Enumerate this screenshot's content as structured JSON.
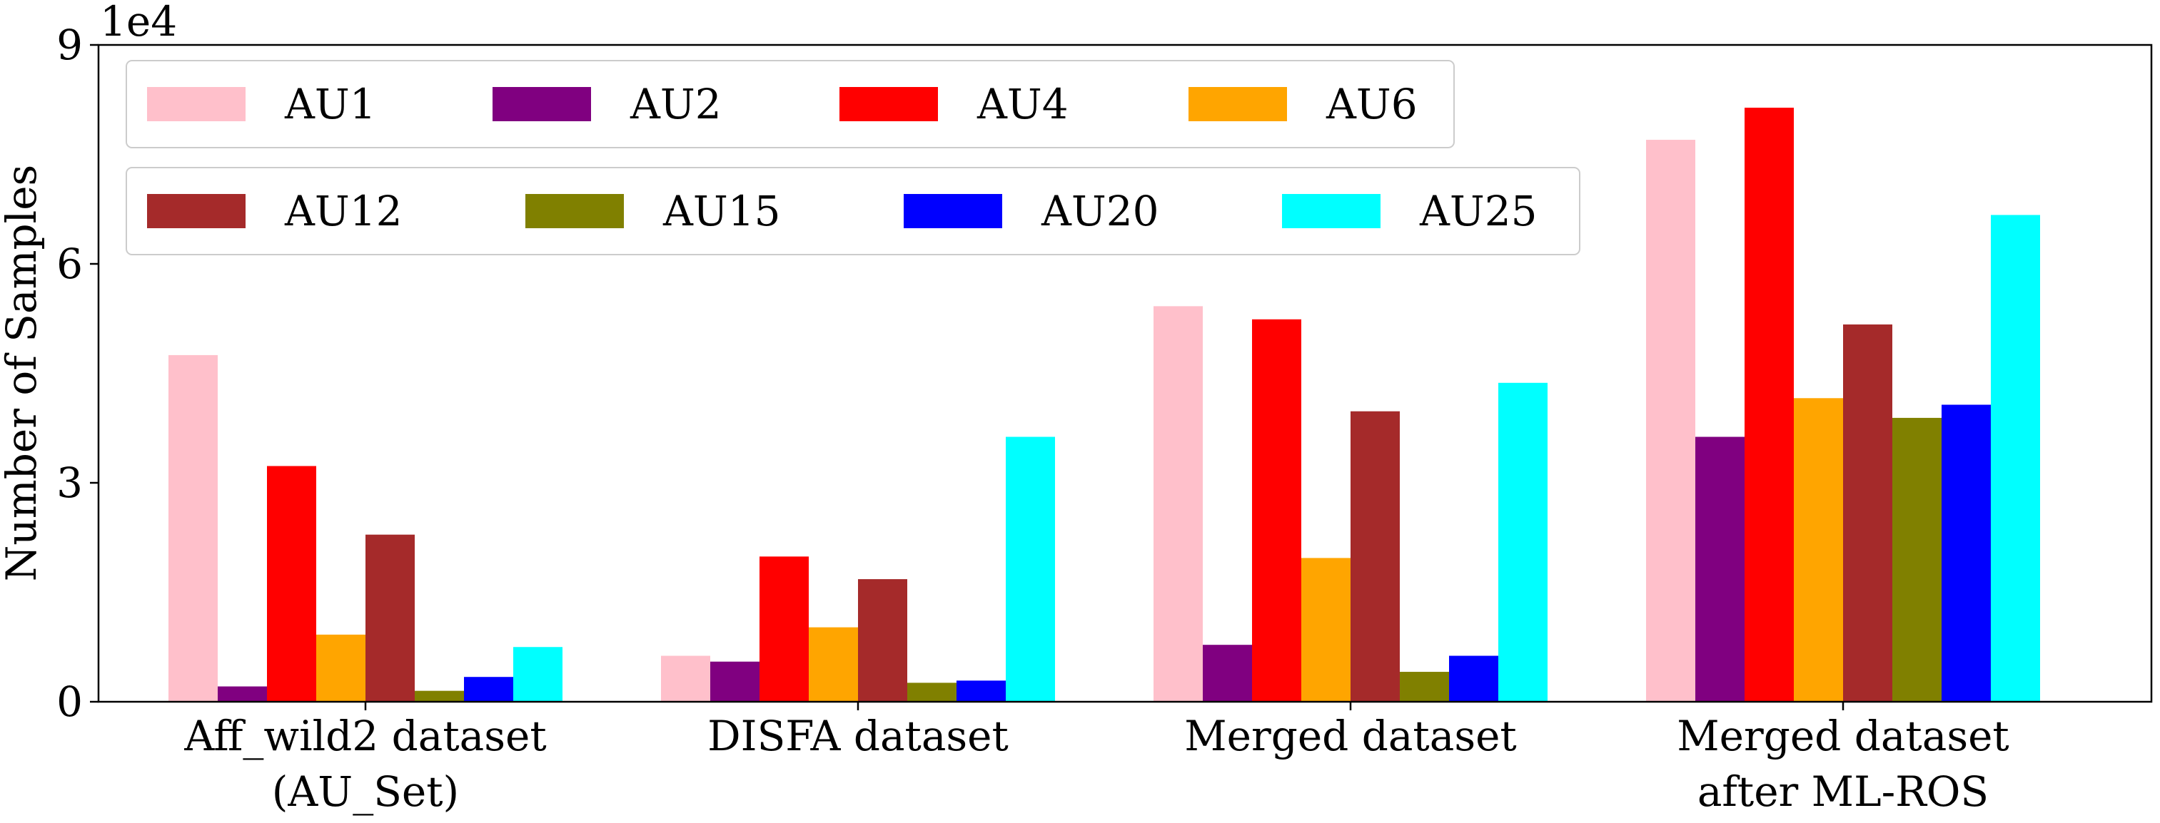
{
  "chart_data": {
    "type": "bar",
    "title": "",
    "xlabel": "",
    "ylabel": "Number of Samples",
    "y_scale_label": "1e4",
    "ylim": [
      0,
      90000
    ],
    "yticks": [
      {
        "value": 0,
        "label": "0"
      },
      {
        "value": 30000,
        "label": "3"
      },
      {
        "value": 60000,
        "label": "6"
      },
      {
        "value": 90000,
        "label": "9"
      }
    ],
    "categories": [
      {
        "line1": "Aff_wild2 dataset",
        "line2": "(AU_Set)"
      },
      {
        "line1": "DISFA dataset",
        "line2": ""
      },
      {
        "line1": "Merged dataset",
        "line2": ""
      },
      {
        "line1": "Merged dataset",
        "line2": "after ML-ROS"
      }
    ],
    "legend_placement": "top-left, two rows",
    "series": [
      {
        "name": "AU1",
        "color": "#ffc0cb",
        "values": [
          47500,
          6300,
          54200,
          77000
        ]
      },
      {
        "name": "AU2",
        "color": "#800080",
        "values": [
          2100,
          5500,
          7800,
          36300
        ]
      },
      {
        "name": "AU4",
        "color": "#ff0000",
        "values": [
          32300,
          19900,
          52400,
          81400
        ]
      },
      {
        "name": "AU6",
        "color": "#ffa500",
        "values": [
          9200,
          10200,
          19700,
          41600
        ]
      },
      {
        "name": "AU12",
        "color": "#a52a2a",
        "values": [
          22900,
          16800,
          39800,
          51700
        ]
      },
      {
        "name": "AU15",
        "color": "#808000",
        "values": [
          1500,
          2600,
          4100,
          38900
        ]
      },
      {
        "name": "AU20",
        "color": "#0000ff",
        "values": [
          3400,
          2900,
          6300,
          40700
        ]
      },
      {
        "name": "AU25",
        "color": "#00ffff",
        "values": [
          7500,
          36300,
          43700,
          66700
        ]
      }
    ]
  }
}
